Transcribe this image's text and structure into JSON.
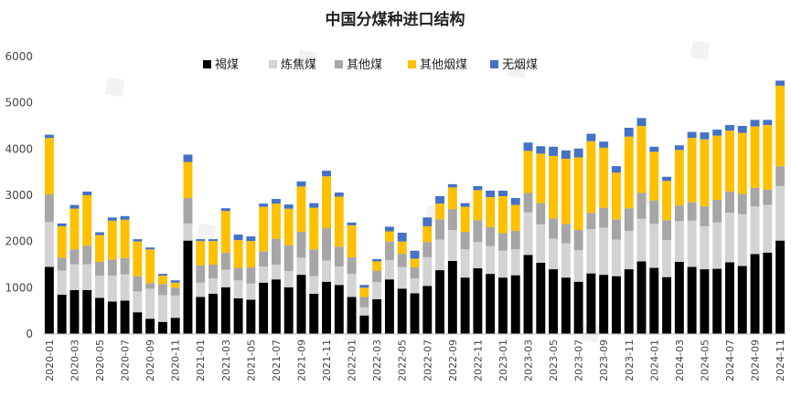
{
  "chart_data": {
    "type": "bar",
    "stacked": true,
    "title": "中国分煤种进口结构",
    "xlabel": "",
    "ylabel": "",
    "ylim": [
      0,
      6000
    ],
    "yticks": [
      0,
      1000,
      2000,
      3000,
      4000,
      5000,
      6000
    ],
    "grid": false,
    "legend_position": "top",
    "categories": [
      "2020-01",
      "2020-02",
      "2020-03",
      "2020-04",
      "2020-05",
      "2020-06",
      "2020-07",
      "2020-08",
      "2020-09",
      "2020-10",
      "2020-11",
      "2020-12",
      "2021-01",
      "2021-02",
      "2021-03",
      "2021-04",
      "2021-05",
      "2021-06",
      "2021-07",
      "2021-08",
      "2021-09",
      "2021-10",
      "2021-11",
      "2021-12",
      "2022-01",
      "2022-02",
      "2022-03",
      "2022-04",
      "2022-05",
      "2022-06",
      "2022-07",
      "2022-08",
      "2022-09",
      "2022-10",
      "2022-11",
      "2022-12",
      "2023-01",
      "2023-02",
      "2023-03",
      "2023-04",
      "2023-05",
      "2023-06",
      "2023-07",
      "2023-08",
      "2023-09",
      "2023-10",
      "2023-11",
      "2023-12",
      "2024-01",
      "2024-02",
      "2024-03",
      "2024-04",
      "2024-05",
      "2024-06",
      "2024-07",
      "2024-08",
      "2024-09",
      "2024-10",
      "2024-11"
    ],
    "tick_labels": [
      "2020-01",
      "",
      "2020-03",
      "",
      "2020-05",
      "",
      "2020-07",
      "",
      "2020-09",
      "",
      "2020-11",
      "",
      "2021-01",
      "",
      "2021-03",
      "",
      "2021-05",
      "",
      "2021-07",
      "",
      "2021-09",
      "",
      "2021-11",
      "",
      "2022-01",
      "",
      "2022-03",
      "",
      "2022-05",
      "",
      "2022-07",
      "",
      "2022-09",
      "",
      "2022-11",
      "",
      "2023-01",
      "",
      "2023-03",
      "",
      "2023-05",
      "",
      "2023-07",
      "",
      "2023-09",
      "",
      "2023-11",
      "",
      "2024-01",
      "",
      "2024-03",
      "",
      "2024-05",
      "",
      "2024-07",
      "",
      "2024-09",
      "",
      "2024-11"
    ],
    "series": [
      {
        "name": "褐煤",
        "color": "#000000",
        "values": [
          1450,
          850,
          950,
          950,
          780,
          700,
          720,
          470,
          330,
          260,
          350,
          2020,
          800,
          870,
          1010,
          770,
          740,
          1110,
          1180,
          1010,
          1280,
          870,
          1130,
          1060,
          800,
          400,
          750,
          1180,
          980,
          880,
          1040,
          1380,
          1580,
          1220,
          1420,
          1300,
          1220,
          1270,
          1710,
          1540,
          1400,
          1220,
          1130,
          1310,
          1280,
          1250,
          1400,
          1570,
          1430,
          1230,
          1560,
          1450,
          1400,
          1410,
          1550,
          1470,
          1730,
          1760,
          2020
        ]
      },
      {
        "name": "炼焦煤",
        "color": "#d3d3d3",
        "values": [
          970,
          520,
          560,
          560,
          480,
          560,
          570,
          450,
          650,
          580,
          480,
          370,
          310,
          330,
          380,
          390,
          350,
          350,
          320,
          350,
          370,
          380,
          460,
          400,
          500,
          180,
          370,
          420,
          470,
          320,
          620,
          660,
          670,
          610,
          570,
          600,
          580,
          560,
          920,
          830,
          660,
          740,
          680,
          960,
          1020,
          790,
          830,
          920,
          950,
          800,
          880,
          1000,
          930,
          1000,
          1070,
          1120,
          1030,
          1030,
          1180
        ]
      },
      {
        "name": "其他煤",
        "color": "#a6a6a6",
        "values": [
          600,
          280,
          320,
          400,
          300,
          350,
          350,
          330,
          120,
          240,
          170,
          550,
          370,
          300,
          370,
          270,
          350,
          330,
          560,
          560,
          560,
          580,
          700,
          430,
          360,
          220,
          250,
          400,
          280,
          240,
          330,
          440,
          450,
          380,
          470,
          410,
          380,
          400,
          420,
          460,
          440,
          420,
          440,
          350,
          430,
          440,
          490,
          560,
          510,
          430,
          340,
          400,
          430,
          490,
          460,
          440,
          400,
          330,
          430
        ]
      },
      {
        "name": "其他烟煤",
        "color": "#ffc000",
        "values": [
          1220,
          680,
          880,
          1090,
          580,
          840,
          830,
          750,
          730,
          180,
          110,
          780,
          530,
          510,
          900,
          600,
          570,
          960,
          760,
          790,
          980,
          900,
          1120,
          1080,
          690,
          200,
          200,
          220,
          270,
          190,
          340,
          340,
          470,
          540,
          650,
          650,
          800,
          560,
          910,
          1070,
          1350,
          1410,
          1570,
          1550,
          1300,
          1010,
          1550,
          1450,
          1050,
          850,
          1200,
          1390,
          1450,
          1390,
          1320,
          1320,
          1330,
          1400,
          1740
        ]
      },
      {
        "name": "无烟煤",
        "color": "#4472c4",
        "values": [
          70,
          60,
          80,
          80,
          60,
          70,
          80,
          50,
          40,
          40,
          50,
          160,
          40,
          40,
          60,
          120,
          100,
          70,
          100,
          90,
          110,
          100,
          120,
          90,
          60,
          60,
          50,
          100,
          190,
          170,
          190,
          160,
          70,
          80,
          90,
          140,
          120,
          150,
          180,
          160,
          200,
          180,
          190,
          160,
          130,
          140,
          190,
          170,
          110,
          90,
          100,
          130,
          150,
          130,
          120,
          150,
          140,
          110,
          110
        ]
      }
    ]
  }
}
